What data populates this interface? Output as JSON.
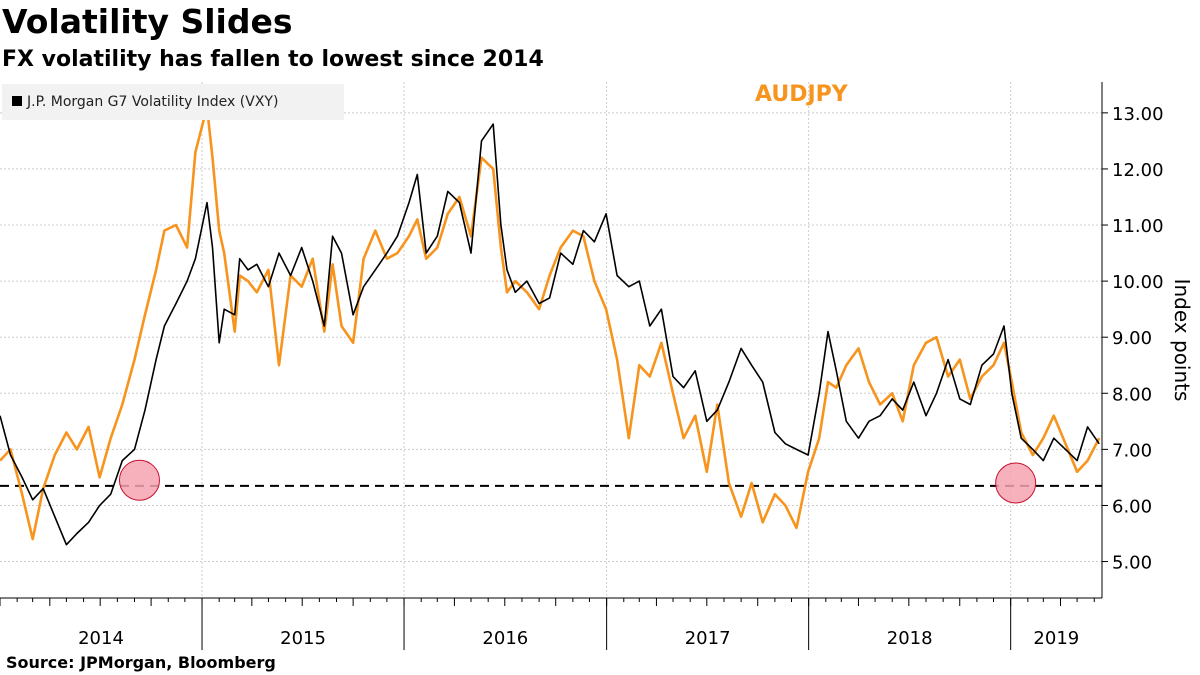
{
  "header": {
    "title": "Volatility Slides",
    "subtitle": "FX volatility has fallen to lowest since 2014"
  },
  "footer": {
    "source": "Source: JPMorgan, Bloomberg"
  },
  "colors": {
    "vxy": "#000000",
    "audjpy": "#f7941d",
    "marker": "#f4a3b0",
    "marker_stroke": "#c8102e",
    "grid": "#cccccc"
  },
  "chart_data": {
    "type": "line",
    "title": "Volatility Slides",
    "subtitle": "FX volatility has fallen to lowest since 2014",
    "ylabel": "Index points",
    "xlabel": "",
    "x_range": [
      "2014-01-01",
      "2019-06-15"
    ],
    "ylim": [
      4.35,
      13.55
    ],
    "y_ticks": [
      5.0,
      6.0,
      7.0,
      8.0,
      9.0,
      10.0,
      11.0,
      12.0,
      13.0
    ],
    "y_tick_labels": [
      "5.00",
      "6.00",
      "7.00",
      "8.00",
      "9.00",
      "10.00",
      "11.00",
      "12.00",
      "13.00"
    ],
    "x_tick_labels": [
      "2014",
      "2015",
      "2016",
      "2017",
      "2018",
      "2019"
    ],
    "grid": true,
    "legend_position": "top-left",
    "annotation": "AUDJPY",
    "series": [
      {
        "name": "J.P. Morgan G7 Volatility Index (VXY)",
        "color": "#000000",
        "x": [
          "2014-01-01",
          "2014-01-20",
          "2014-02-10",
          "2014-03-01",
          "2014-03-20",
          "2014-04-10",
          "2014-05-01",
          "2014-05-20",
          "2014-06-10",
          "2014-06-30",
          "2014-07-20",
          "2014-08-10",
          "2014-09-01",
          "2014-09-20",
          "2014-10-10",
          "2014-10-25",
          "2014-11-15",
          "2014-12-05",
          "2014-12-20",
          "2015-01-10",
          "2015-01-20",
          "2015-02-01",
          "2015-02-10",
          "2015-03-01",
          "2015-03-10",
          "2015-03-25",
          "2015-04-10",
          "2015-05-01",
          "2015-05-20",
          "2015-06-10",
          "2015-06-30",
          "2015-07-20",
          "2015-08-10",
          "2015-08-25",
          "2015-09-10",
          "2015-10-01",
          "2015-10-20",
          "2015-11-10",
          "2015-12-01",
          "2015-12-20",
          "2016-01-10",
          "2016-01-25",
          "2016-02-10",
          "2016-03-01",
          "2016-03-20",
          "2016-04-10",
          "2016-05-01",
          "2016-05-20",
          "2016-06-10",
          "2016-06-24",
          "2016-07-05",
          "2016-07-20",
          "2016-08-10",
          "2016-09-01",
          "2016-09-20",
          "2016-10-10",
          "2016-11-01",
          "2016-11-20",
          "2016-12-10",
          "2016-12-31",
          "2017-01-20",
          "2017-02-10",
          "2017-03-01",
          "2017-03-20",
          "2017-04-10",
          "2017-05-01",
          "2017-05-20",
          "2017-06-10",
          "2017-07-01",
          "2017-07-20",
          "2017-08-10",
          "2017-09-01",
          "2017-09-20",
          "2017-10-10",
          "2017-11-01",
          "2017-11-20",
          "2017-12-10",
          "2017-12-31",
          "2018-01-20",
          "2018-02-05",
          "2018-02-20",
          "2018-03-10",
          "2018-04-01",
          "2018-04-20",
          "2018-05-10",
          "2018-06-01",
          "2018-06-20",
          "2018-07-10",
          "2018-08-01",
          "2018-08-20",
          "2018-09-10",
          "2018-10-01",
          "2018-10-20",
          "2018-11-10",
          "2018-12-01",
          "2018-12-20",
          "2019-01-03",
          "2019-01-20",
          "2019-02-10",
          "2019-03-01",
          "2019-03-20",
          "2019-04-10",
          "2019-05-01",
          "2019-05-20",
          "2019-06-10"
        ],
        "values": [
          7.6,
          6.9,
          6.5,
          6.1,
          6.3,
          5.8,
          5.3,
          5.5,
          5.7,
          6.0,
          6.2,
          6.8,
          7.0,
          7.7,
          8.6,
          9.2,
          9.6,
          10.0,
          10.4,
          11.4,
          10.6,
          8.9,
          9.5,
          9.4,
          10.4,
          10.2,
          10.3,
          9.9,
          10.5,
          10.1,
          10.6,
          10.0,
          9.2,
          10.8,
          10.5,
          9.4,
          9.9,
          10.2,
          10.5,
          10.8,
          11.4,
          11.9,
          10.5,
          10.8,
          11.6,
          11.4,
          10.5,
          12.5,
          12.8,
          11.0,
          10.2,
          9.8,
          10.0,
          9.6,
          9.7,
          10.5,
          10.3,
          10.9,
          10.7,
          11.2,
          10.1,
          9.9,
          10.0,
          9.2,
          9.5,
          8.3,
          8.1,
          8.4,
          7.5,
          7.7,
          8.2,
          8.8,
          8.5,
          8.2,
          7.3,
          7.1,
          7.0,
          6.9,
          8.0,
          9.1,
          8.4,
          7.5,
          7.2,
          7.5,
          7.6,
          7.9,
          7.7,
          8.2,
          7.6,
          8.0,
          8.6,
          7.9,
          7.8,
          8.5,
          8.7,
          9.2,
          8.0,
          7.2,
          7.0,
          6.8,
          7.2,
          7.0,
          6.8,
          7.4,
          7.1
        ]
      },
      {
        "name": "AUDJPY",
        "color": "#f7941d",
        "x": [
          "2014-01-01",
          "2014-01-20",
          "2014-02-10",
          "2014-03-01",
          "2014-03-20",
          "2014-04-10",
          "2014-05-01",
          "2014-05-20",
          "2014-06-10",
          "2014-06-30",
          "2014-07-20",
          "2014-08-10",
          "2014-09-01",
          "2014-09-20",
          "2014-10-10",
          "2014-10-25",
          "2014-11-15",
          "2014-12-05",
          "2014-12-20",
          "2015-01-10",
          "2015-01-20",
          "2015-02-01",
          "2015-02-10",
          "2015-03-01",
          "2015-03-10",
          "2015-03-25",
          "2015-04-10",
          "2015-05-01",
          "2015-05-20",
          "2015-06-10",
          "2015-06-30",
          "2015-07-20",
          "2015-08-10",
          "2015-08-25",
          "2015-09-10",
          "2015-10-01",
          "2015-10-20",
          "2015-11-10",
          "2015-12-01",
          "2015-12-20",
          "2016-01-10",
          "2016-01-25",
          "2016-02-10",
          "2016-03-01",
          "2016-03-20",
          "2016-04-10",
          "2016-05-01",
          "2016-05-20",
          "2016-06-10",
          "2016-06-24",
          "2016-07-05",
          "2016-07-20",
          "2016-08-10",
          "2016-09-01",
          "2016-09-20",
          "2016-10-10",
          "2016-11-01",
          "2016-11-20",
          "2016-12-10",
          "2016-12-31",
          "2017-01-20",
          "2017-02-10",
          "2017-03-01",
          "2017-03-20",
          "2017-04-10",
          "2017-05-01",
          "2017-05-20",
          "2017-06-10",
          "2017-07-01",
          "2017-07-20",
          "2017-08-10",
          "2017-09-01",
          "2017-09-20",
          "2017-10-10",
          "2017-11-01",
          "2017-11-20",
          "2017-12-10",
          "2017-12-31",
          "2018-01-20",
          "2018-02-05",
          "2018-02-20",
          "2018-03-10",
          "2018-04-01",
          "2018-04-20",
          "2018-05-10",
          "2018-06-01",
          "2018-06-20",
          "2018-07-10",
          "2018-08-01",
          "2018-08-20",
          "2018-09-10",
          "2018-10-01",
          "2018-10-20",
          "2018-11-10",
          "2018-12-01",
          "2018-12-20",
          "2019-01-03",
          "2019-01-20",
          "2019-02-10",
          "2019-03-01",
          "2019-03-20",
          "2019-04-10",
          "2019-05-01",
          "2019-05-20",
          "2019-06-10"
        ],
        "values": [
          6.8,
          7.0,
          6.2,
          5.4,
          6.3,
          6.9,
          7.3,
          7.0,
          7.4,
          6.5,
          7.2,
          7.8,
          8.6,
          9.4,
          10.2,
          10.9,
          11.0,
          10.6,
          12.3,
          13.1,
          12.2,
          10.9,
          10.5,
          9.1,
          10.1,
          10.0,
          9.8,
          10.2,
          8.5,
          10.1,
          9.9,
          10.4,
          9.1,
          10.3,
          9.2,
          8.9,
          10.4,
          10.9,
          10.4,
          10.5,
          10.8,
          11.1,
          10.4,
          10.6,
          11.2,
          11.5,
          10.8,
          12.2,
          12.0,
          10.6,
          9.8,
          10.0,
          9.8,
          9.5,
          10.1,
          10.6,
          10.9,
          10.8,
          10.0,
          9.5,
          8.6,
          7.2,
          8.5,
          8.3,
          8.9,
          8.0,
          7.2,
          7.6,
          6.6,
          7.8,
          6.4,
          5.8,
          6.4,
          5.7,
          6.2,
          6.0,
          5.6,
          6.6,
          7.2,
          8.2,
          8.1,
          8.5,
          8.8,
          8.2,
          7.8,
          8.0,
          7.5,
          8.5,
          8.9,
          9.0,
          8.3,
          8.6,
          7.9,
          8.3,
          8.5,
          8.9,
          8.2,
          7.3,
          6.9,
          7.2,
          7.6,
          7.1,
          6.6,
          6.8,
          7.2
        ]
      }
    ],
    "reference_line": {
      "y": 6.35,
      "style": "dashed"
    },
    "highlight_points": [
      {
        "x": "2014-09-10",
        "y": 6.45
      },
      {
        "x": "2019-01-10",
        "y": 6.4
      }
    ]
  }
}
